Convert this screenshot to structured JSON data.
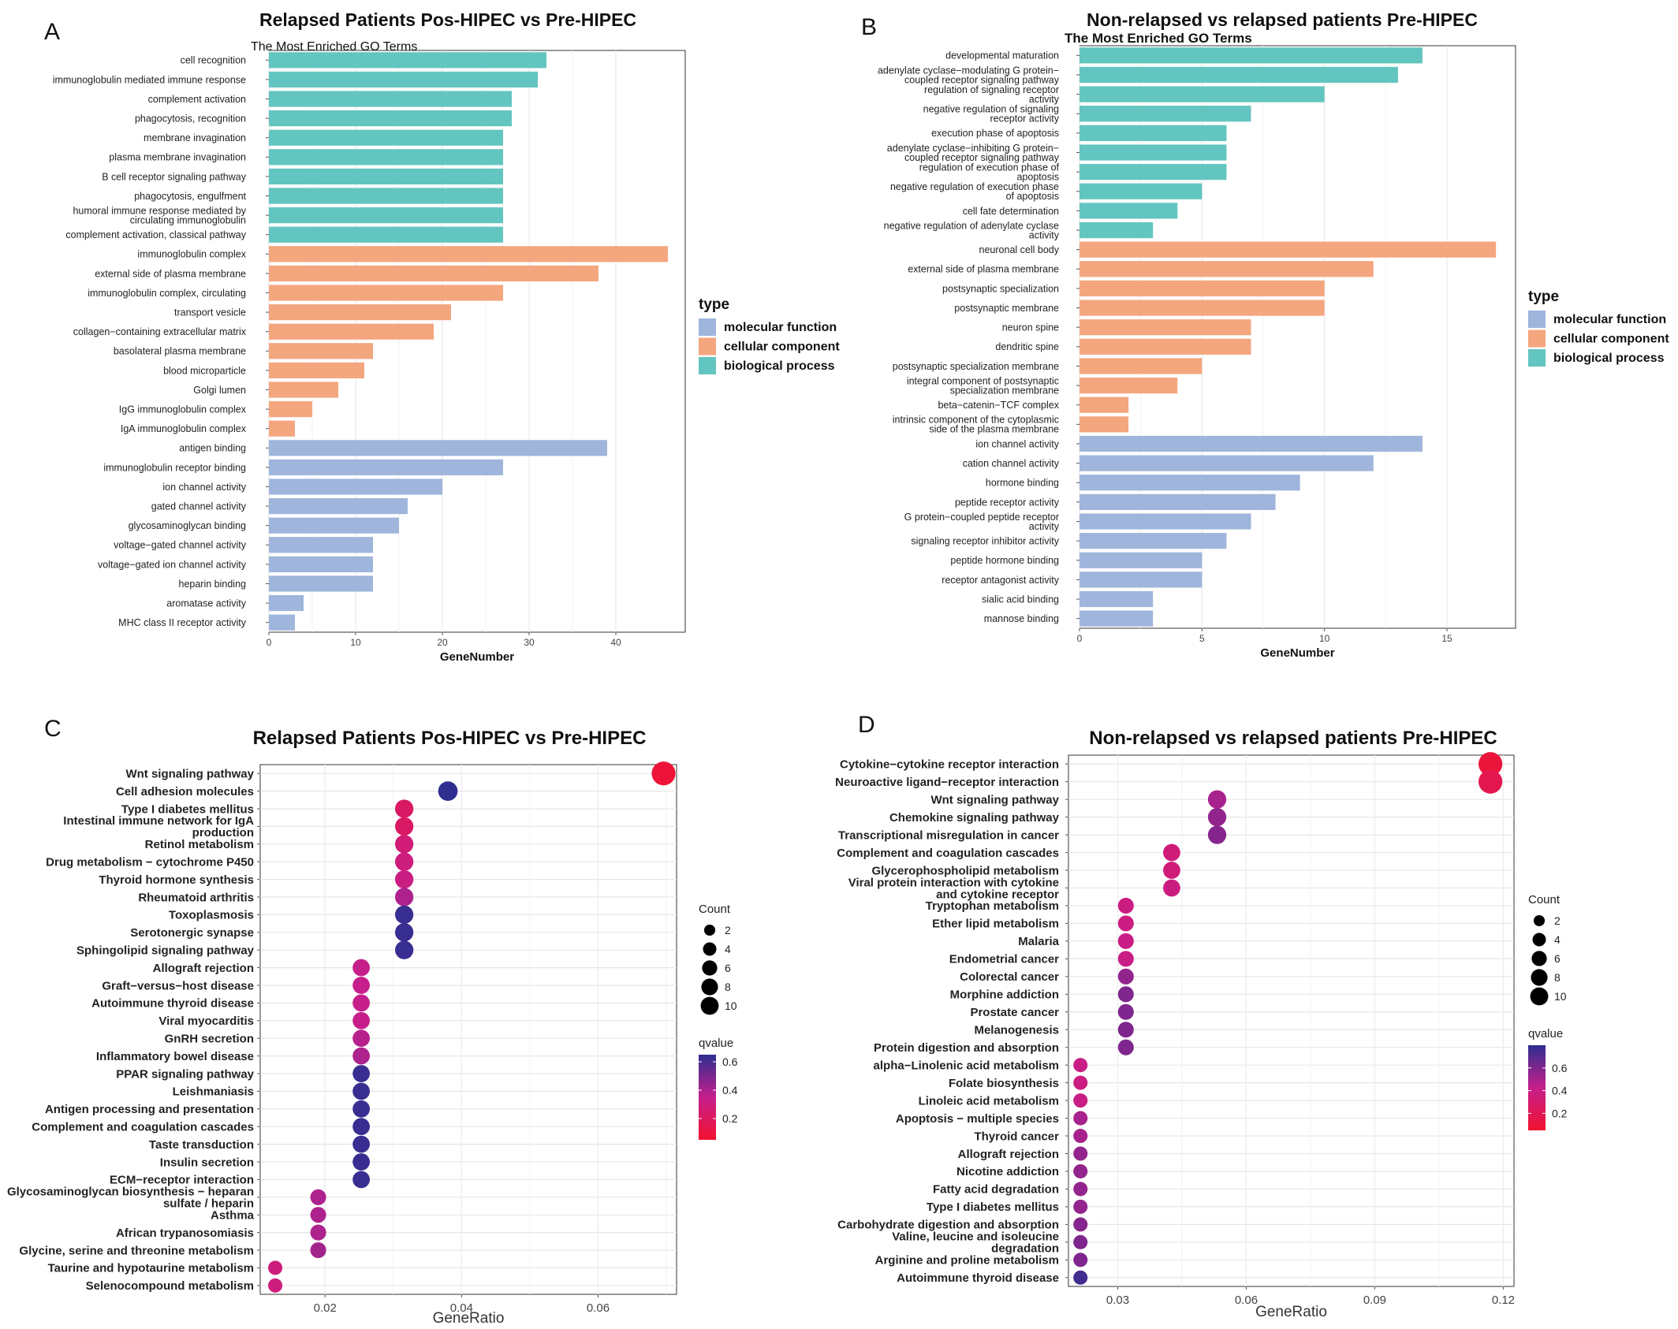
{
  "colors": {
    "biological_process": "#63C5BF",
    "cellular_component": "#F4A67E",
    "molecular_function": "#9FB5DB",
    "q_low": "#F1122F",
    "q_mid": "#C61F8C",
    "q_high": "#2E2E90",
    "grid": "#E6E6E6",
    "panel_border": "#333333"
  },
  "legend_type": {
    "title": "type",
    "items": [
      "molecular function",
      "cellular component",
      "biological process"
    ]
  },
  "chart_data": [
    {
      "panel": "A",
      "type": "bar",
      "orientation": "horizontal",
      "title": "Relapsed Patients Pos-HIPEC vs Pre-HIPEC",
      "subtitle": "The Most Enriched GO Terms",
      "xlabel": "GeneNumber",
      "xlim": [
        0,
        48
      ],
      "xticks": [
        0,
        10,
        20,
        30,
        40
      ],
      "grid": true,
      "legend": "right",
      "categories": [
        "cell recognition",
        "immunoglobulin mediated immune response",
        "complement activation",
        "phagocytosis, recognition",
        "membrane invagination",
        "plasma membrane invagination",
        "B cell receptor signaling pathway",
        "phagocytosis, engulfment",
        "humoral immune response mediated by\ncirculating immunoglobulin",
        "complement activation, classical pathway",
        "immunoglobulin complex",
        "external side of plasma membrane",
        "immunoglobulin complex, circulating",
        "transport vesicle",
        "collagen−containing extracellular matrix",
        "basolateral plasma membrane",
        "blood microparticle",
        "Golgi lumen",
        "IgG immunoglobulin complex",
        "IgA immunoglobulin complex",
        "antigen binding",
        "immunoglobulin receptor binding",
        "ion channel activity",
        "gated channel activity",
        "glycosaminoglycan binding",
        "voltage−gated channel activity",
        "voltage−gated ion channel activity",
        "heparin binding",
        "aromatase activity",
        "MHC class II receptor activity"
      ],
      "values": [
        32,
        31,
        28,
        28,
        27,
        27,
        27,
        27,
        27,
        27,
        46,
        38,
        27,
        21,
        19,
        12,
        11,
        8,
        5,
        3,
        39,
        27,
        20,
        16,
        15,
        12,
        12,
        12,
        4,
        3
      ],
      "types": [
        "biological_process",
        "biological_process",
        "biological_process",
        "biological_process",
        "biological_process",
        "biological_process",
        "biological_process",
        "biological_process",
        "biological_process",
        "biological_process",
        "cellular_component",
        "cellular_component",
        "cellular_component",
        "cellular_component",
        "cellular_component",
        "cellular_component",
        "cellular_component",
        "cellular_component",
        "cellular_component",
        "cellular_component",
        "molecular_function",
        "molecular_function",
        "molecular_function",
        "molecular_function",
        "molecular_function",
        "molecular_function",
        "molecular_function",
        "molecular_function",
        "molecular_function",
        "molecular_function"
      ]
    },
    {
      "panel": "B",
      "type": "bar",
      "orientation": "horizontal",
      "title": "Non-relapsed vs relapsed patients Pre-HIPEC",
      "subtitle": "The Most Enriched GO Terms",
      "xlabel": "GeneNumber",
      "xlim": [
        0,
        17.8
      ],
      "xticks": [
        0,
        5,
        10,
        15
      ],
      "grid": true,
      "legend": "right",
      "categories": [
        "developmental maturation",
        "adenylate cyclase−modulating G protein−\ncoupled receptor signaling pathway",
        "regulation of signaling receptor\nactivity",
        "negative regulation of signaling\nreceptor activity",
        "execution phase of apoptosis",
        "adenylate cyclase−inhibiting G protein−\ncoupled receptor signaling pathway",
        "regulation of execution phase of\napoptosis",
        "negative regulation of execution phase\nof apoptosis",
        "cell fate determination",
        "negative regulation of adenylate cyclase\nactivity",
        "neuronal cell body",
        "external side of plasma membrane",
        "postsynaptic specialization",
        "postsynaptic membrane",
        "neuron spine",
        "dendritic spine",
        "postsynaptic specialization membrane",
        "integral component of postsynaptic\nspecialization membrane",
        "beta−catenin−TCF complex",
        "intrinsic component of the cytoplasmic\nside of the plasma membrane",
        "ion channel activity",
        "cation channel activity",
        "hormone binding",
        "peptide receptor activity",
        "G protein−coupled peptide receptor\nactivity",
        "signaling receptor inhibitor activity",
        "peptide hormone binding",
        "receptor antagonist activity",
        "sialic acid binding",
        "mannose binding"
      ],
      "values": [
        14,
        13,
        10,
        7,
        6,
        6,
        6,
        5,
        4,
        3,
        17,
        12,
        10,
        10,
        7,
        7,
        5,
        4,
        2,
        2,
        14,
        12,
        9,
        8,
        7,
        6,
        5,
        5,
        3,
        3
      ],
      "types": [
        "biological_process",
        "biological_process",
        "biological_process",
        "biological_process",
        "biological_process",
        "biological_process",
        "biological_process",
        "biological_process",
        "biological_process",
        "biological_process",
        "cellular_component",
        "cellular_component",
        "cellular_component",
        "cellular_component",
        "cellular_component",
        "cellular_component",
        "cellular_component",
        "cellular_component",
        "cellular_component",
        "cellular_component",
        "molecular_function",
        "molecular_function",
        "molecular_function",
        "molecular_function",
        "molecular_function",
        "molecular_function",
        "molecular_function",
        "molecular_function",
        "molecular_function",
        "molecular_function"
      ]
    },
    {
      "panel": "C",
      "type": "scatter",
      "title": "Relapsed Patients Pos-HIPEC vs Pre-HIPEC",
      "xlabel": "GeneRatio",
      "xlim": [
        0.0105,
        0.0715
      ],
      "xticks": [
        0.02,
        0.04,
        0.06
      ],
      "xtick_labels": [
        "0.02",
        "0.04",
        "0.06"
      ],
      "grid": true,
      "legend": "right",
      "size_legend": {
        "title": "Count",
        "values": [
          2,
          4,
          6,
          8,
          10
        ]
      },
      "color_legend": {
        "title": "qvalue",
        "range": [
          0.05,
          0.65
        ],
        "ticks": [
          0.2,
          0.4,
          0.6
        ],
        "tick_labels": [
          "0.2",
          "0.4",
          "0.6"
        ]
      },
      "categories": [
        "Wnt signaling pathway",
        "Cell adhesion molecules",
        "Type I diabetes mellitus",
        "Intestinal immune network for IgA\nproduction",
        "Retinol metabolism",
        "Drug metabolism − cytochrome P450",
        "Thyroid hormone synthesis",
        "Rheumatoid arthritis",
        "Toxoplasmosis",
        "Serotonergic synapse",
        "Sphingolipid signaling pathway",
        "Allograft rejection",
        "Graft−versus−host disease",
        "Autoimmune thyroid disease",
        "Viral myocarditis",
        "GnRH secretion",
        "Inflammatory bowel disease",
        "PPAR signaling pathway",
        "Leishmaniasis",
        "Antigen processing and presentation",
        "Complement and coagulation cascades",
        "Taste transduction",
        "Insulin secretion",
        "ECM−receptor interaction",
        "Glycosaminoglycan biosynthesis − heparan\nsulfate / heparin",
        "Asthma",
        "African trypanosomiasis",
        "Glycine, serine and threonine metabolism",
        "Taurine and hypotaurine metabolism",
        "Selenocompound metabolism"
      ],
      "x": [
        0.0696,
        0.038,
        0.0316,
        0.0316,
        0.0316,
        0.0316,
        0.0316,
        0.0316,
        0.0316,
        0.0316,
        0.0316,
        0.0253,
        0.0253,
        0.0253,
        0.0253,
        0.0253,
        0.0253,
        0.0253,
        0.0253,
        0.0253,
        0.0253,
        0.0253,
        0.0253,
        0.0253,
        0.019,
        0.019,
        0.019,
        0.019,
        0.0127,
        0.0127
      ],
      "count": [
        11,
        6,
        5,
        5,
        5,
        5,
        5,
        5,
        5,
        5,
        5,
        4,
        4,
        4,
        4,
        4,
        4,
        4,
        4,
        4,
        4,
        4,
        4,
        4,
        3,
        3,
        3,
        3,
        2,
        2
      ],
      "qvalue": [
        0.08,
        0.65,
        0.22,
        0.22,
        0.28,
        0.3,
        0.32,
        0.4,
        0.63,
        0.63,
        0.63,
        0.35,
        0.35,
        0.35,
        0.35,
        0.38,
        0.4,
        0.63,
        0.63,
        0.63,
        0.63,
        0.63,
        0.63,
        0.63,
        0.4,
        0.4,
        0.4,
        0.42,
        0.3,
        0.3
      ]
    },
    {
      "panel": "D",
      "type": "scatter",
      "title": "Non-relapsed vs relapsed patients Pre-HIPEC",
      "xlabel": "GeneRatio",
      "xlim": [
        0.0185,
        0.1225
      ],
      "xticks": [
        0.03,
        0.06,
        0.09,
        0.12
      ],
      "xtick_labels": [
        "0.03",
        "0.06",
        "0.09",
        "0.12"
      ],
      "grid": true,
      "legend": "right",
      "size_legend": {
        "title": "Count",
        "values": [
          2,
          4,
          6,
          8,
          10
        ]
      },
      "color_legend": {
        "title": "qvalue",
        "range": [
          0.05,
          0.8
        ],
        "ticks": [
          0.2,
          0.4,
          0.6
        ],
        "tick_labels": [
          "0.2",
          "0.4",
          "0.6"
        ]
      },
      "categories": [
        "Cytokine−cytokine receptor interaction",
        "Neuroactive ligand−receptor interaction",
        "Wnt signaling pathway",
        "Chemokine signaling pathway",
        "Transcriptional misregulation in cancer",
        "Complement and coagulation cascades",
        "Glycerophospholipid metabolism",
        "Viral protein interaction with cytokine\nand cytokine receptor",
        "Tryptophan metabolism",
        "Ether lipid metabolism",
        "Malaria",
        "Endometrial cancer",
        "Colorectal cancer",
        "Morphine addiction",
        "Prostate cancer",
        "Melanogenesis",
        "Protein digestion and absorption",
        "alpha−Linolenic acid metabolism",
        "Folate biosynthesis",
        "Linoleic acid metabolism",
        "Apoptosis − multiple species",
        "Thyroid cancer",
        "Allograft rejection",
        "Nicotine addiction",
        "Fatty acid degradation",
        "Type I diabetes mellitus",
        "Carbohydrate digestion and absorption",
        "Valine, leucine and isoleucine\ndegradation",
        "Arginine and proline metabolism",
        "Autoimmune thyroid disease"
      ],
      "x": [
        0.117,
        0.117,
        0.0532,
        0.0532,
        0.0532,
        0.0426,
        0.0426,
        0.0426,
        0.0319,
        0.0319,
        0.0319,
        0.0319,
        0.0319,
        0.0319,
        0.0319,
        0.0319,
        0.0319,
        0.0213,
        0.0213,
        0.0213,
        0.0213,
        0.0213,
        0.0213,
        0.0213,
        0.0213,
        0.0213,
        0.0213,
        0.0213,
        0.0213,
        0.0213
      ],
      "count": [
        11,
        11,
        5,
        5,
        5,
        4,
        4,
        4,
        3,
        3,
        3,
        3,
        3,
        3,
        3,
        3,
        3,
        2,
        2,
        2,
        2,
        2,
        2,
        2,
        2,
        2,
        2,
        2,
        2,
        2
      ],
      "qvalue": [
        0.1,
        0.18,
        0.5,
        0.55,
        0.58,
        0.35,
        0.35,
        0.38,
        0.38,
        0.38,
        0.4,
        0.4,
        0.55,
        0.6,
        0.6,
        0.6,
        0.6,
        0.4,
        0.38,
        0.4,
        0.5,
        0.5,
        0.55,
        0.55,
        0.55,
        0.55,
        0.58,
        0.6,
        0.6,
        0.75
      ]
    }
  ],
  "panel_letters": [
    "A",
    "B",
    "C",
    "D"
  ]
}
